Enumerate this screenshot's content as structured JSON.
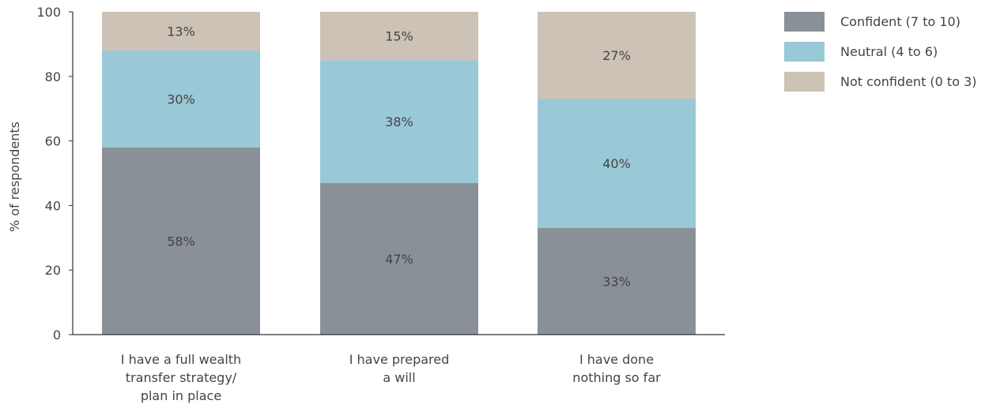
{
  "chart_data": {
    "type": "bar",
    "stacked": true,
    "orientation": "vertical",
    "categories": [
      [
        "I have a full wealth",
        "transfer strategy/",
        "plan in place"
      ],
      [
        "I have prepared",
        "a will"
      ],
      [
        "I have done",
        "nothing so far"
      ]
    ],
    "series": [
      {
        "name": "Confident (7 to 10)",
        "color": "#8a9097",
        "values": [
          58,
          47,
          33
        ],
        "labels": [
          "58%",
          "47%",
          "33%"
        ]
      },
      {
        "name": "Neutral (4 to 6)",
        "color": "#99c8d6",
        "values": [
          30,
          38,
          40
        ],
        "labels": [
          "30%",
          "38%",
          "40%"
        ]
      },
      {
        "name": "Not confident (0 to 3)",
        "color": "#ccc2b5",
        "values": [
          13,
          15,
          27
        ],
        "labels": [
          "13%",
          "15%",
          "27%"
        ]
      }
    ],
    "ylabel": "% of respondents",
    "ylim": [
      0,
      100
    ],
    "yticks": [
      0,
      20,
      40,
      60,
      80,
      100
    ],
    "grid": false,
    "legend_position": "top-right"
  }
}
